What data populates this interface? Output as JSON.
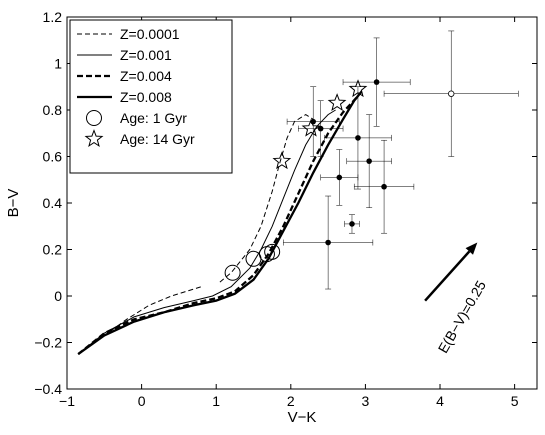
{
  "chart_data": {
    "type": "line",
    "title": "",
    "xlabel": "V−K",
    "ylabel": "B−V",
    "xlim": [
      -1,
      5.3
    ],
    "ylim": [
      -0.4,
      1.2
    ],
    "xticks": [
      -1,
      0,
      1,
      2,
      3,
      4,
      5
    ],
    "yticks": [
      -0.4,
      -0.2,
      0,
      0.2,
      0.4,
      0.6,
      0.8,
      1,
      1.2
    ],
    "xtick_labels": [
      "−1",
      "0",
      "1",
      "2",
      "3",
      "4",
      "5"
    ],
    "ytick_labels": [
      "−0.4",
      "−0.2",
      "0",
      "0.2",
      "0.4",
      "0.6",
      "0.8",
      "1",
      "1.2"
    ],
    "grid": false,
    "legend_position": "top-left",
    "series": [
      {
        "name": "Z=0.0001",
        "style": "dashed-thin",
        "points": [
          [
            -0.85,
            -0.25
          ],
          [
            -0.5,
            -0.17
          ],
          [
            -0.2,
            -0.1
          ],
          [
            0.1,
            -0.04
          ],
          [
            0.4,
            0.0
          ],
          [
            0.8,
            0.04
          ]
        ]
      },
      {
        "name": "Z=0.0001",
        "style": "dashed-thin",
        "points": [
          [
            1.05,
            0.06
          ],
          [
            1.2,
            0.1
          ],
          [
            1.45,
            0.2
          ],
          [
            1.6,
            0.3
          ],
          [
            1.75,
            0.45
          ],
          [
            1.85,
            0.57
          ],
          [
            1.95,
            0.68
          ],
          [
            2.05,
            0.75
          ],
          [
            2.2,
            0.78
          ],
          [
            2.3,
            0.76
          ]
        ]
      },
      {
        "name": "Z=0.001",
        "style": "solid-thin",
        "points": [
          [
            -0.85,
            -0.25
          ],
          [
            -0.5,
            -0.16
          ],
          [
            -0.1,
            -0.09
          ],
          [
            0.3,
            -0.05
          ],
          [
            0.7,
            -0.02
          ],
          [
            0.95,
            0.0
          ],
          [
            1.2,
            0.04
          ],
          [
            1.45,
            0.12
          ],
          [
            1.6,
            0.2
          ],
          [
            1.75,
            0.3
          ],
          [
            1.9,
            0.42
          ],
          [
            2.05,
            0.54
          ],
          [
            2.2,
            0.65
          ],
          [
            2.35,
            0.73
          ],
          [
            2.5,
            0.78
          ],
          [
            2.6,
            0.8
          ]
        ]
      },
      {
        "name": "Z=0.004",
        "style": "dashed-thick",
        "points": [
          [
            -0.85,
            -0.25
          ],
          [
            -0.5,
            -0.16
          ],
          [
            -0.1,
            -0.1
          ],
          [
            0.3,
            -0.07
          ],
          [
            0.7,
            -0.03
          ],
          [
            1.0,
            -0.01
          ],
          [
            1.25,
            0.02
          ],
          [
            1.5,
            0.09
          ],
          [
            1.7,
            0.18
          ],
          [
            1.9,
            0.3
          ],
          [
            2.1,
            0.44
          ],
          [
            2.3,
            0.58
          ],
          [
            2.5,
            0.7
          ],
          [
            2.7,
            0.79
          ],
          [
            2.9,
            0.86
          ]
        ]
      },
      {
        "name": "Z=0.008",
        "style": "solid-thick",
        "points": [
          [
            -0.85,
            -0.25
          ],
          [
            -0.5,
            -0.17
          ],
          [
            -0.1,
            -0.11
          ],
          [
            0.3,
            -0.07
          ],
          [
            0.7,
            -0.04
          ],
          [
            1.0,
            -0.02
          ],
          [
            1.25,
            0.01
          ],
          [
            1.5,
            0.07
          ],
          [
            1.7,
            0.16
          ],
          [
            1.9,
            0.28
          ],
          [
            2.1,
            0.4
          ],
          [
            2.3,
            0.53
          ],
          [
            2.5,
            0.65
          ],
          [
            2.7,
            0.76
          ],
          [
            2.85,
            0.84
          ],
          [
            2.95,
            0.88
          ]
        ]
      }
    ],
    "age_markers": [
      {
        "name": "Age: 1 Gyr",
        "symbol": "circle",
        "points": [
          [
            1.22,
            0.1
          ],
          [
            1.5,
            0.16
          ],
          [
            1.68,
            0.18
          ],
          [
            1.75,
            0.19
          ]
        ]
      },
      {
        "name": "Age: 14 Gyr",
        "symbol": "star",
        "points": [
          [
            1.88,
            0.58
          ],
          [
            2.27,
            0.72
          ],
          [
            2.62,
            0.83
          ],
          [
            2.9,
            0.89
          ]
        ]
      }
    ],
    "observations": [
      {
        "x": 2.3,
        "y": 0.75,
        "xerr": 0.35,
        "yerr": 0.15
      },
      {
        "x": 2.4,
        "y": 0.72,
        "xerr": 0.3,
        "yerr": 0.12
      },
      {
        "x": 3.15,
        "y": 0.92,
        "xerr": 0.45,
        "yerr": 0.19
      },
      {
        "x": 2.9,
        "y": 0.68,
        "xerr": 0.45,
        "yerr": 0.22
      },
      {
        "x": 3.05,
        "y": 0.58,
        "xerr": 0.3,
        "yerr": 0.2
      },
      {
        "x": 2.65,
        "y": 0.51,
        "xerr": 0.25,
        "yerr": 0.12
      },
      {
        "x": 3.25,
        "y": 0.47,
        "xerr": 0.4,
        "yerr": 0.2
      },
      {
        "x": 2.82,
        "y": 0.31,
        "xerr": 0.1,
        "yerr": 0.04
      },
      {
        "x": 2.5,
        "y": 0.23,
        "xerr": 0.6,
        "yerr": 0.2
      }
    ],
    "open_observation": {
      "x": 4.15,
      "y": 0.87,
      "xerr": 0.9,
      "yerr": 0.27
    },
    "annotation": {
      "text": "E(B−V)=0.25",
      "arrow_from": [
        3.8,
        -0.02
      ],
      "arrow_to": [
        4.5,
        0.23
      ]
    }
  }
}
